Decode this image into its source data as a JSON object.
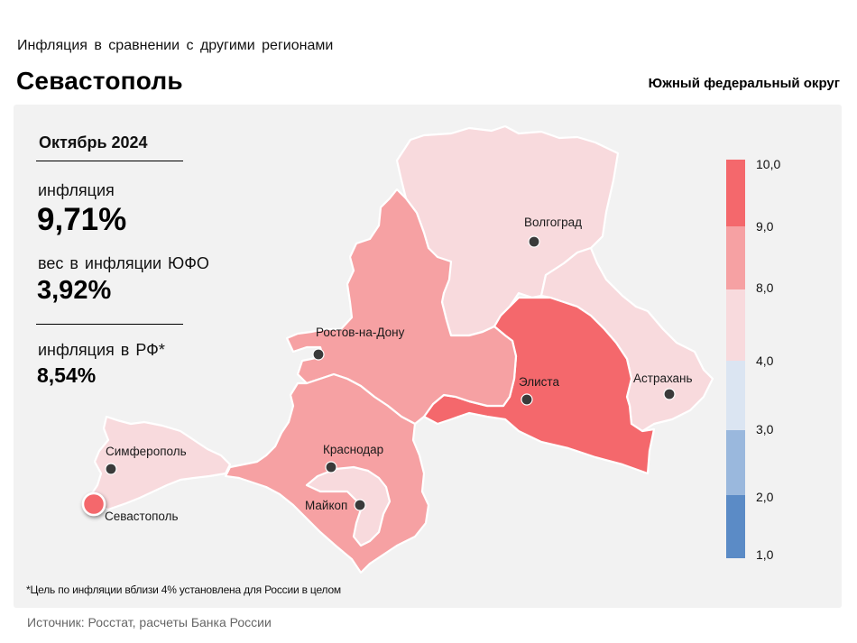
{
  "header": {
    "subtitle": "Инфляция  в сравнении  с другими  регионами",
    "title": "Севастополь",
    "district": "Южный федеральный округ"
  },
  "stats": {
    "period": "Октябрь 2024",
    "inflation_label": "инфляция",
    "inflation_value": "9,71%",
    "weight_label": "вес в инфляции  ЮФО",
    "weight_value": "3,92%",
    "rf_label": "инфляция  в РФ*",
    "rf_value": "8,54%"
  },
  "legend": {
    "ticks": [
      "10,0",
      "9,0",
      "8,0",
      "4,0",
      "3,0",
      "2,0",
      "1,0"
    ],
    "bins": [
      {
        "from": 9.0,
        "to": 10.0,
        "color": "#f4686c"
      },
      {
        "from": 8.0,
        "to": 9.0,
        "color": "#f6a1a3"
      },
      {
        "from": 4.0,
        "to": 8.0,
        "color": "#f8dadd"
      },
      {
        "from": 3.0,
        "to": 4.0,
        "color": "#dbe5f2"
      },
      {
        "from": 2.0,
        "to": 3.0,
        "color": "#9ab8dd"
      },
      {
        "from": 1.0,
        "to": 2.0,
        "color": "#5b8bc6"
      }
    ]
  },
  "regions": [
    {
      "name": "Волгоградская область",
      "bin": "4-8",
      "color": "#f8dadd"
    },
    {
      "name": "Астраханская область",
      "bin": "4-8",
      "color": "#f8dadd"
    },
    {
      "name": "Ростовская область",
      "bin": "8-9",
      "color": "#f6a1a3"
    },
    {
      "name": "Калмыкия",
      "bin": "9-10",
      "color": "#f4686c"
    },
    {
      "name": "Краснодарский край",
      "bin": "8-9",
      "color": "#f6a1a3"
    },
    {
      "name": "Адыгея",
      "bin": "4-8",
      "color": "#f8dadd"
    },
    {
      "name": "Крым",
      "bin": "4-8",
      "color": "#f8dadd"
    },
    {
      "name": "Севастополь",
      "bin": "9-10",
      "color": "#f4686c"
    }
  ],
  "cities": {
    "volgograd": "Волгоград",
    "rostov": "Ростов-на-Дону",
    "elista": "Элиста",
    "astrakhan": "Астрахань",
    "krasnodar": "Краснодар",
    "maykop": "Майкоп",
    "simferopol": "Симферополь",
    "sevastopol": "Севастополь"
  },
  "footnote": "*Цель по инфляции вблизи 4% установлена для России в  целом",
  "source": "Источник: Росстат, расчеты Банка России"
}
